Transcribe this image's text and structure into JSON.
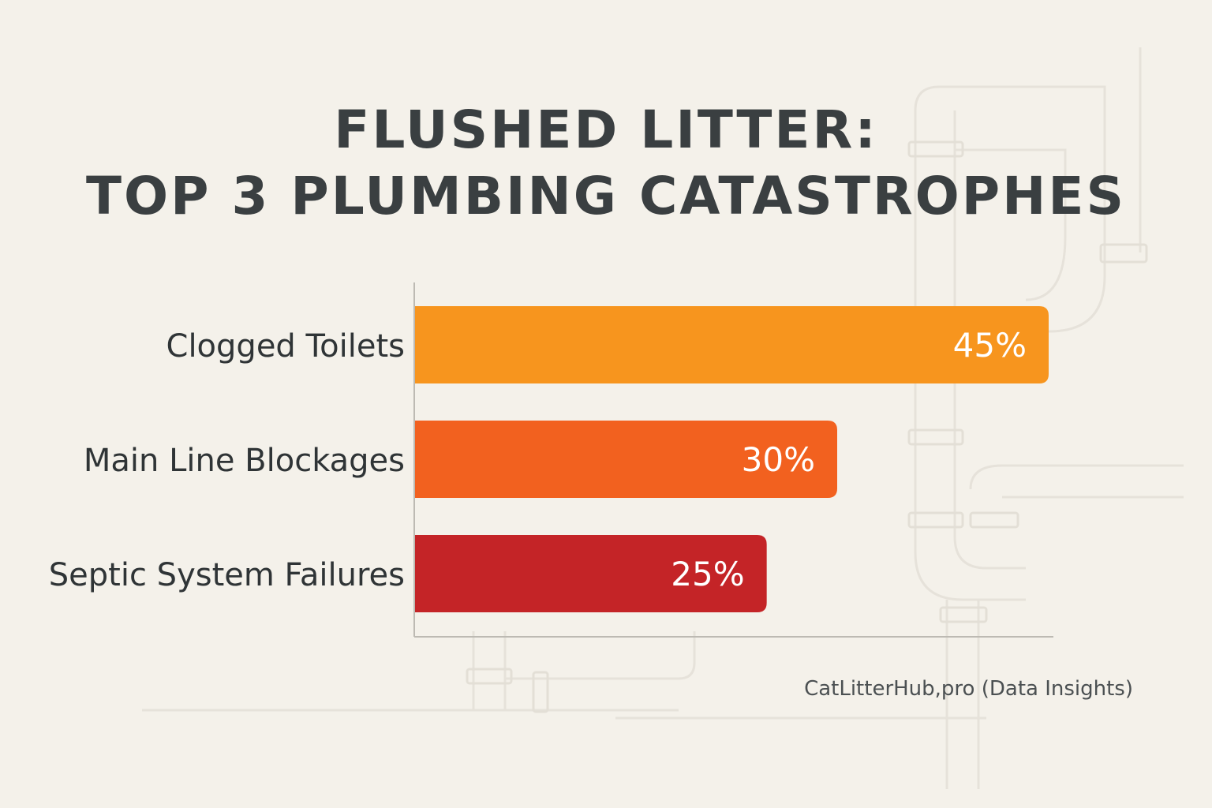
{
  "title_line1": "FLUSHED LITTER:",
  "title_line2": "TOP 3 PLUMBING CATASTROPHES",
  "source": "CatLitterHub,pro (Data Insights)",
  "chart_data": {
    "type": "bar",
    "orientation": "horizontal",
    "title": "FLUSHED LITTER: TOP 3 PLUMBING CATASTROPHES",
    "categories": [
      "Clogged Toilets",
      "Main Line Blockages",
      "Septic System Failures"
    ],
    "values": [
      45,
      30,
      25
    ],
    "data_labels": [
      "45%",
      "30%",
      "25%"
    ],
    "colors": [
      "#f7951e",
      "#f2611f",
      "#c42427"
    ],
    "xlim": [
      0,
      45
    ],
    "grid": false,
    "legend": "none"
  }
}
